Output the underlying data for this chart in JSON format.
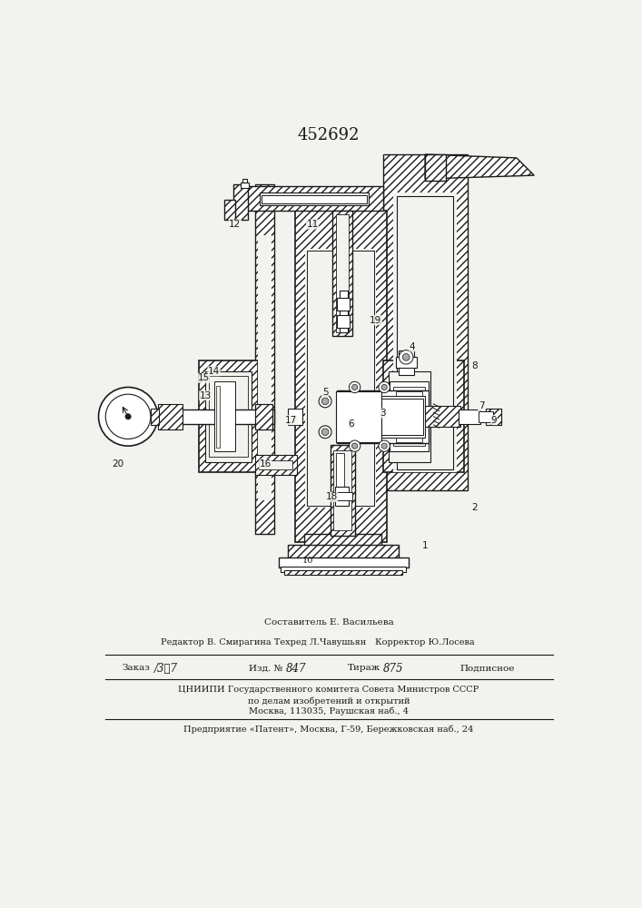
{
  "patent_number": "452692",
  "bg_color": "#f2f2ee",
  "lc": "#1a1a1a",
  "footer": {
    "line1": "Составитель Е. Васильева",
    "line2_left": "Редактор В. Смирагина Техред Л.Чавушьян",
    "line2_right": "Корректор Ю.Лосева",
    "line3": "Заказ  /387          Изд. № 847          Тираж  875          Подписное",
    "line4": "ЦНИИПИ Государственного комитета Совета Министров СССР",
    "line5": "по делам изобретений и открытий",
    "line6": "Москва, 113035, Раушская наб., 4",
    "line7": "Предприятие «Патент», Москва, Г-59, Бережковская наб., 24"
  }
}
